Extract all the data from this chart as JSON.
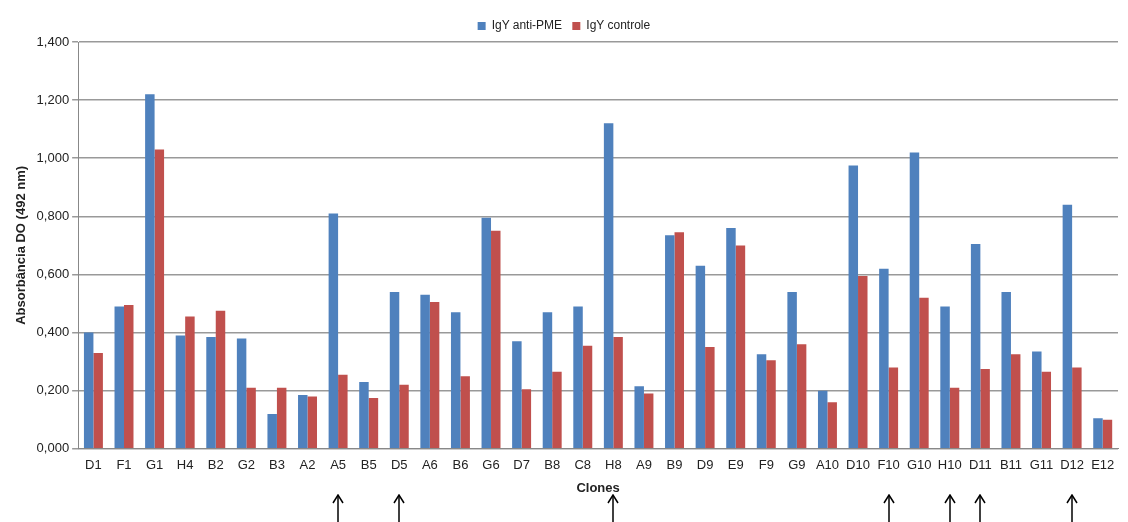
{
  "chart_data": {
    "type": "bar",
    "xlabel": "Clones",
    "ylabel": "Absorbância DO (492 nm)",
    "categories": [
      "D1",
      "F1",
      "G1",
      "H4",
      "B2",
      "G2",
      "B3",
      "A2",
      "A5",
      "B5",
      "D5",
      "A6",
      "B6",
      "G6",
      "D7",
      "B8",
      "C8",
      "H8",
      "A9",
      "B9",
      "D9",
      "E9",
      "F9",
      "G9",
      "A10",
      "D10",
      "F10",
      "G10",
      "H10",
      "D11",
      "B11",
      "G11",
      "D12",
      "E12"
    ],
    "series": [
      {
        "name": "IgY anti-PME",
        "color": "#4f81bd",
        "values": [
          0.4,
          0.49,
          1.22,
          0.39,
          0.385,
          0.38,
          0.12,
          0.185,
          0.81,
          0.23,
          0.54,
          0.53,
          0.47,
          0.795,
          0.37,
          0.47,
          0.49,
          1.12,
          0.215,
          0.735,
          0.63,
          0.76,
          0.325,
          0.54,
          0.2,
          0.975,
          0.62,
          1.02,
          0.49,
          0.705,
          0.54,
          0.335,
          0.84,
          0.105
        ]
      },
      {
        "name": "IgY controle",
        "color": "#c0504d",
        "values": [
          0.33,
          0.495,
          1.03,
          0.455,
          0.475,
          0.21,
          0.21,
          0.18,
          0.255,
          0.175,
          0.22,
          0.505,
          0.25,
          0.75,
          0.205,
          0.265,
          0.355,
          0.385,
          0.19,
          0.745,
          0.35,
          0.7,
          0.305,
          0.36,
          0.16,
          0.595,
          0.28,
          0.52,
          0.21,
          0.275,
          0.325,
          0.265,
          0.28,
          0.1
        ]
      }
    ],
    "ylim": [
      0,
      1.4
    ],
    "yticks": [
      {
        "value": 0,
        "label": "0,000"
      },
      {
        "value": 0.2,
        "label": "0,200"
      },
      {
        "value": 0.4,
        "label": "0,400"
      },
      {
        "value": 0.6,
        "label": "0,600"
      },
      {
        "value": 0.8,
        "label": "0,800"
      },
      {
        "value": 1.0,
        "label": "1,000"
      },
      {
        "value": 1.2,
        "label": "1,200"
      },
      {
        "value": 1.4,
        "label": "1,400"
      }
    ],
    "grid": "y",
    "legend": "top"
  }
}
